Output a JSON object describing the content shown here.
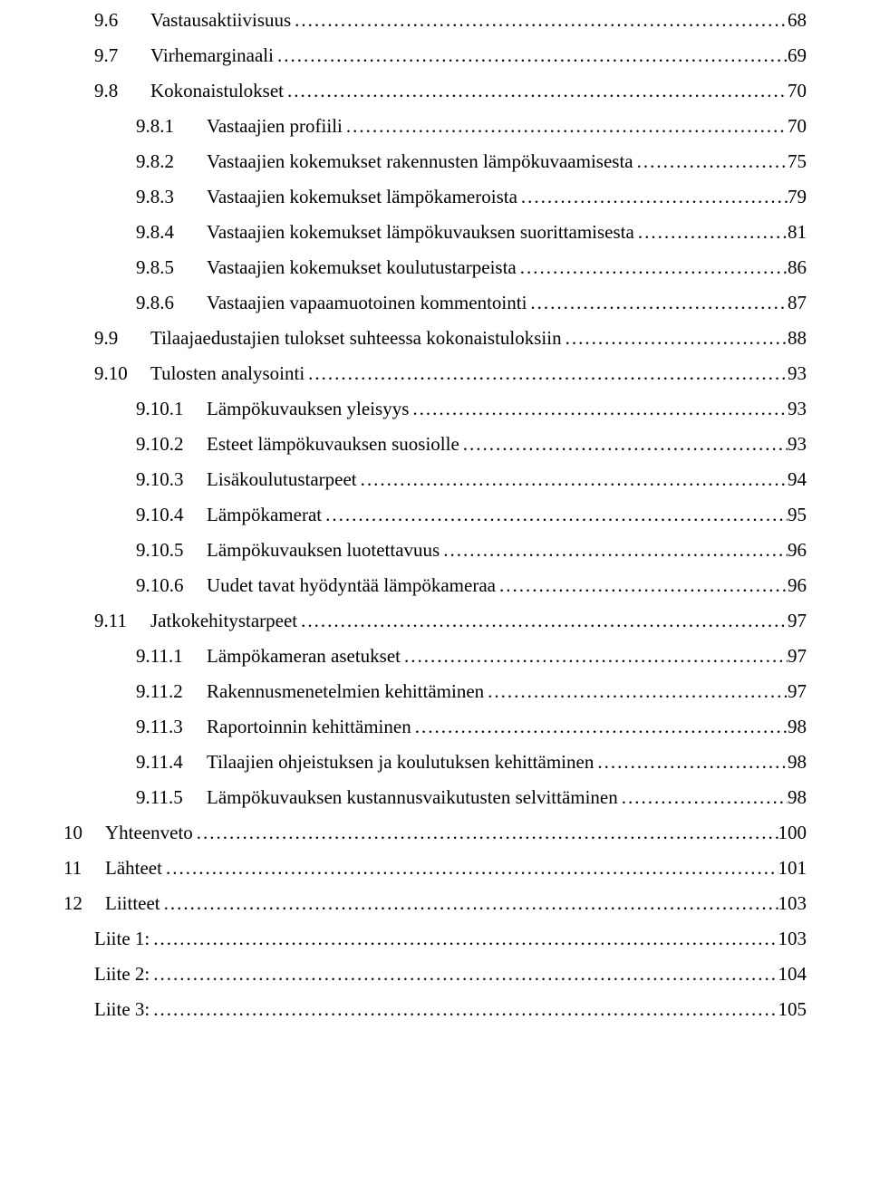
{
  "leader_char": ".",
  "toc": [
    {
      "indent": 1,
      "numw": "num-w2",
      "num": "9.6",
      "title": "Vastausaktiivisuus",
      "page": "68"
    },
    {
      "indent": 1,
      "numw": "num-w2",
      "num": "9.7",
      "title": "Virhemarginaali",
      "page": "69"
    },
    {
      "indent": 1,
      "numw": "num-w2",
      "num": "9.8",
      "title": "Kokonaistulokset",
      "page": "70"
    },
    {
      "indent": 2,
      "numw": "num-w3",
      "num": "9.8.1",
      "title": "Vastaajien profiili",
      "page": "70"
    },
    {
      "indent": 2,
      "numw": "num-w3",
      "num": "9.8.2",
      "title": "Vastaajien kokemukset rakennusten lämpökuvaamisesta",
      "page": "75"
    },
    {
      "indent": 2,
      "numw": "num-w3",
      "num": "9.8.3",
      "title": "Vastaajien kokemukset lämpökameroista",
      "page": "79"
    },
    {
      "indent": 2,
      "numw": "num-w3",
      "num": "9.8.4",
      "title": "Vastaajien kokemukset lämpökuvauksen suorittamisesta",
      "page": "81"
    },
    {
      "indent": 2,
      "numw": "num-w3",
      "num": "9.8.5",
      "title": "Vastaajien kokemukset koulutustarpeista",
      "page": "86"
    },
    {
      "indent": 2,
      "numw": "num-w3",
      "num": "9.8.6",
      "title": "Vastaajien vapaamuotoinen kommentointi",
      "page": "87"
    },
    {
      "indent": 1,
      "numw": "num-w2",
      "num": "9.9",
      "title": "Tilaajaedustajien tulokset suhteessa kokonaistuloksiin",
      "page": "88"
    },
    {
      "indent": 1,
      "numw": "num-w2",
      "num": "9.10",
      "title": "Tulosten analysointi",
      "page": "93"
    },
    {
      "indent": 2,
      "numw": "num-w3",
      "num": "9.10.1",
      "title": "Lämpökuvauksen yleisyys",
      "page": "93"
    },
    {
      "indent": 2,
      "numw": "num-w3",
      "num": "9.10.2",
      "title": "Esteet lämpökuvauksen suosiolle",
      "page": "93"
    },
    {
      "indent": 2,
      "numw": "num-w3",
      "num": "9.10.3",
      "title": "Lisäkoulutustarpeet",
      "page": "94"
    },
    {
      "indent": 2,
      "numw": "num-w3",
      "num": "9.10.4",
      "title": "Lämpökamerat",
      "page": "95"
    },
    {
      "indent": 2,
      "numw": "num-w3",
      "num": "9.10.5",
      "title": "Lämpökuvauksen luotettavuus",
      "page": "96"
    },
    {
      "indent": 2,
      "numw": "num-w3",
      "num": "9.10.6",
      "title": "Uudet tavat hyödyntää lämpökameraa",
      "page": "96"
    },
    {
      "indent": 1,
      "numw": "num-w2",
      "num": "9.11",
      "title": "Jatkokehitystarpeet",
      "page": "97"
    },
    {
      "indent": 2,
      "numw": "num-w3",
      "num": "9.11.1",
      "title": "Lämpökameran asetukset",
      "page": "97"
    },
    {
      "indent": 2,
      "numw": "num-w3",
      "num": "9.11.2",
      "title": "Rakennusmenetelmien kehittäminen",
      "page": "97"
    },
    {
      "indent": 2,
      "numw": "num-w3",
      "num": "9.11.3",
      "title": "Raportoinnin kehittäminen",
      "page": "98"
    },
    {
      "indent": 2,
      "numw": "num-w3",
      "num": "9.11.4",
      "title": "Tilaajien ohjeistuksen ja koulutuksen kehittäminen",
      "page": "98"
    },
    {
      "indent": 2,
      "numw": "num-w3",
      "num": "9.11.5",
      "title": "Lämpökuvauksen kustannusvaikutusten selvittäminen",
      "page": "98"
    },
    {
      "indent": 0,
      "numw": "num-w1",
      "num": "10",
      "title": "Yhteenveto",
      "page": "100"
    },
    {
      "indent": 0,
      "numw": "num-w1",
      "num": "11",
      "title": "Lähteet",
      "page": "101"
    },
    {
      "indent": 0,
      "numw": "num-w1",
      "num": "12",
      "title": "Liitteet",
      "page": "103"
    },
    {
      "indent": 1,
      "numw": "",
      "num": "",
      "title": "Liite 1:",
      "page": "103"
    },
    {
      "indent": 1,
      "numw": "",
      "num": "",
      "title": "Liite 2:",
      "page": "104"
    },
    {
      "indent": 1,
      "numw": "",
      "num": "",
      "title": "Liite 3:",
      "page": "105"
    }
  ]
}
